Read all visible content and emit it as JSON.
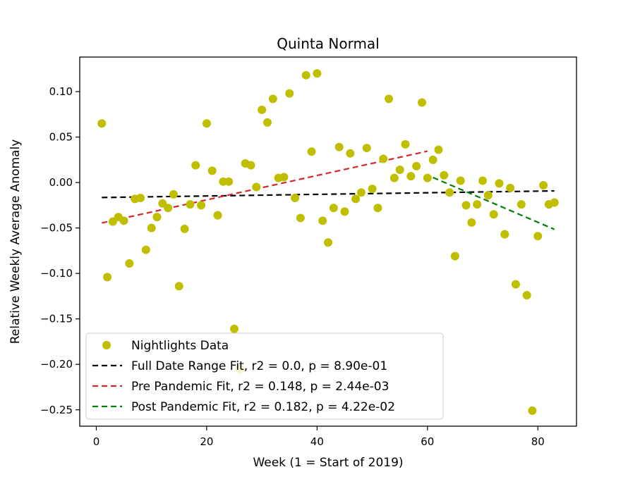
{
  "chart_data": {
    "type": "scatter",
    "title": "Quinta Normal",
    "xlabel": "Week (1 = Start of 2019)",
    "ylabel": "Relative Weekly Average Anomaly",
    "xlim": [
      -3,
      87
    ],
    "ylim": [
      -0.268,
      0.138
    ],
    "xticks": [
      0,
      20,
      40,
      60,
      80
    ],
    "xtick_labels": [
      "0",
      "20",
      "40",
      "60",
      "80"
    ],
    "yticks": [
      -0.25,
      -0.2,
      -0.15,
      -0.1,
      -0.05,
      0.0,
      0.05,
      0.1
    ],
    "ytick_labels": [
      "−0.25",
      "−0.20",
      "−0.15",
      "−0.10",
      "−0.05",
      "0.00",
      "0.05",
      "0.10"
    ],
    "grid": false,
    "legend_position": "lower-left",
    "colors": {
      "points": "#bfbf00",
      "full_fit": "#000000",
      "pre_fit": "#d62728",
      "post_fit": "#008000"
    },
    "series": [
      {
        "name": "Nightlights Data",
        "kind": "points",
        "x": [
          1,
          2,
          3,
          4,
          5,
          6,
          7,
          8,
          9,
          10,
          11,
          12,
          13,
          14,
          15,
          16,
          17,
          18,
          19,
          20,
          21,
          22,
          23,
          24,
          25,
          26,
          27,
          28,
          29,
          30,
          31,
          32,
          33,
          34,
          35,
          36,
          37,
          38,
          39,
          40,
          41,
          42,
          43,
          44,
          45,
          46,
          47,
          48,
          49,
          50,
          51,
          52,
          53,
          54,
          55,
          56,
          57,
          58,
          59,
          60,
          61,
          62,
          63,
          64,
          65,
          66,
          67,
          68,
          69,
          70,
          71,
          72,
          73,
          74,
          75,
          76,
          77,
          78,
          79,
          80,
          81,
          82,
          83
        ],
        "y": [
          0.065,
          -0.104,
          -0.043,
          -0.038,
          -0.042,
          -0.089,
          -0.018,
          -0.017,
          -0.074,
          -0.05,
          -0.038,
          -0.023,
          -0.028,
          -0.013,
          -0.114,
          -0.051,
          -0.024,
          0.019,
          -0.025,
          0.065,
          0.013,
          -0.036,
          0.001,
          0.001,
          -0.161,
          -0.205,
          0.021,
          0.019,
          -0.005,
          0.08,
          0.066,
          0.092,
          0.005,
          0.006,
          0.098,
          -0.017,
          -0.039,
          0.118,
          0.034,
          0.12,
          -0.042,
          -0.066,
          -0.028,
          0.039,
          -0.032,
          0.032,
          -0.018,
          -0.011,
          0.038,
          -0.007,
          -0.028,
          0.026,
          0.092,
          0.005,
          0.014,
          0.042,
          0.007,
          0.018,
          0.088,
          0.005,
          0.025,
          0.036,
          0.008,
          -0.011,
          -0.081,
          0.002,
          -0.025,
          -0.044,
          -0.024,
          0.002,
          -0.014,
          -0.035,
          -0.001,
          -0.057,
          -0.006,
          -0.112,
          -0.024,
          -0.124,
          -0.251,
          -0.059,
          -0.003,
          -0.024,
          -0.022
        ]
      },
      {
        "name": "Full Date Range Fit, r2 = 0.0, p = 8.90e-01",
        "kind": "line",
        "x": [
          1,
          83
        ],
        "y": [
          -0.0165,
          -0.0092
        ]
      },
      {
        "name": "Pre Pandemic Fit, r2 = 0.148, p = 2.44e-03",
        "kind": "line",
        "x": [
          1,
          60
        ],
        "y": [
          -0.0445,
          0.0345
        ]
      },
      {
        "name": "Post Pandemic Fit, r2 = 0.182, p = 4.22e-02",
        "kind": "line",
        "x": [
          61,
          83
        ],
        "y": [
          0.0055,
          -0.0515
        ]
      }
    ]
  }
}
